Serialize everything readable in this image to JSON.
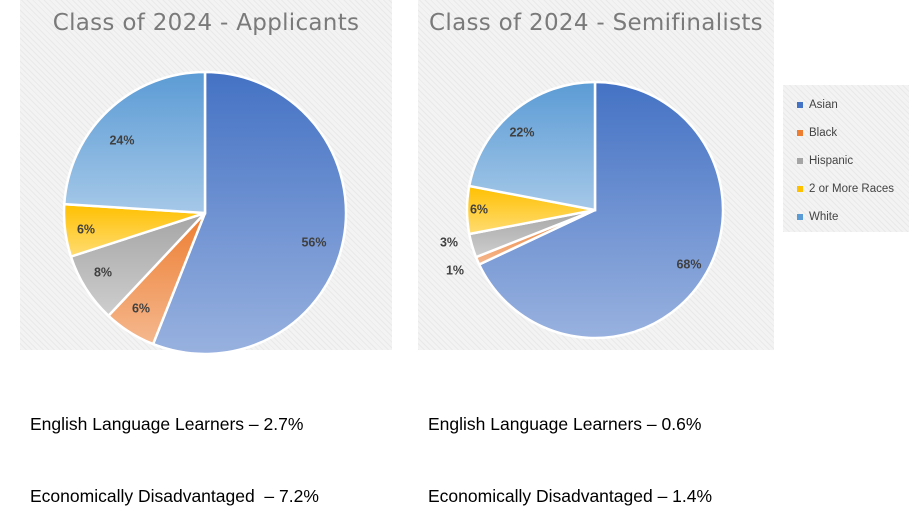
{
  "colors": {
    "Asian": "#4472c4",
    "Black": "#ed7d31",
    "Hispanic": "#a5a5a5",
    "2 or More Races": "#ffc000",
    "White": "#5b9bd5"
  },
  "chart_data": [
    {
      "type": "pie",
      "title": "Class of 2024 - Applicants",
      "categories": [
        "Asian",
        "Black",
        "Hispanic",
        "2 or More Races",
        "White"
      ],
      "values": [
        56,
        6,
        8,
        6,
        24
      ],
      "labels": [
        "56%",
        "6%",
        "8%",
        "6%",
        "24%"
      ]
    },
    {
      "type": "pie",
      "title": "Class of 2024 - Semifinalists",
      "categories": [
        "Asian",
        "Black",
        "Hispanic",
        "2 or More Races",
        "White"
      ],
      "values": [
        68,
        1,
        3,
        6,
        22
      ],
      "labels": [
        "68%",
        "1%",
        "3%",
        "6%",
        "22%"
      ]
    }
  ],
  "legend": {
    "items": [
      "Asian",
      "Black",
      "Hispanic",
      "2 or More Races",
      "White"
    ]
  },
  "stats": [
    {
      "ell": "English Language Learners – 2.7%",
      "econ": "Economically Disadvantaged  – 7.2%"
    },
    {
      "ell": "English Language Learners – 0.6%",
      "econ": "Economically Disadvantaged – 1.4%"
    }
  ]
}
